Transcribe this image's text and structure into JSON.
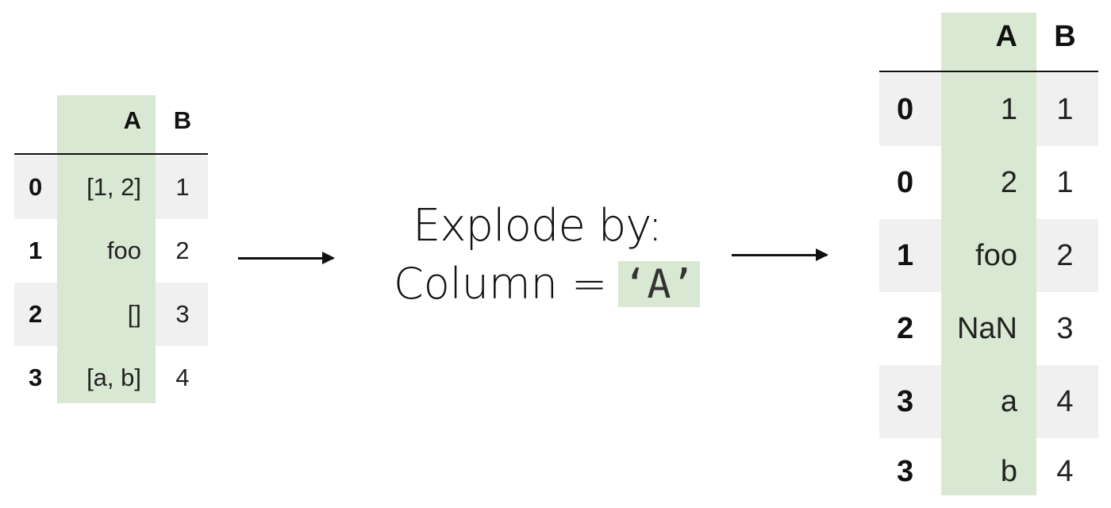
{
  "input_table": {
    "columns": [
      "A",
      "B"
    ],
    "rows": [
      {
        "index": "0",
        "A": "[1, 2]",
        "B": "1"
      },
      {
        "index": "1",
        "A": "foo",
        "B": "2"
      },
      {
        "index": "2",
        "A": "[]",
        "B": "3"
      },
      {
        "index": "3",
        "A": "[a, b]",
        "B": "4"
      }
    ]
  },
  "operation": {
    "title": "Explode by:",
    "column_label": "Column =",
    "column_value": "‘A’"
  },
  "output_table": {
    "columns": [
      "A",
      "B"
    ],
    "rows": [
      {
        "index": "0",
        "A": "1",
        "B": "1"
      },
      {
        "index": "0",
        "A": "2",
        "B": "1"
      },
      {
        "index": "1",
        "A": "foo",
        "B": "2"
      },
      {
        "index": "2",
        "A": "NaN",
        "B": "3"
      },
      {
        "index": "3",
        "A": "a",
        "B": "4"
      },
      {
        "index": "3",
        "A": "b",
        "B": "4"
      }
    ]
  },
  "colors": {
    "highlight": "#d9e8d2",
    "stripe": "#f0f0f0",
    "text": "#111111"
  }
}
